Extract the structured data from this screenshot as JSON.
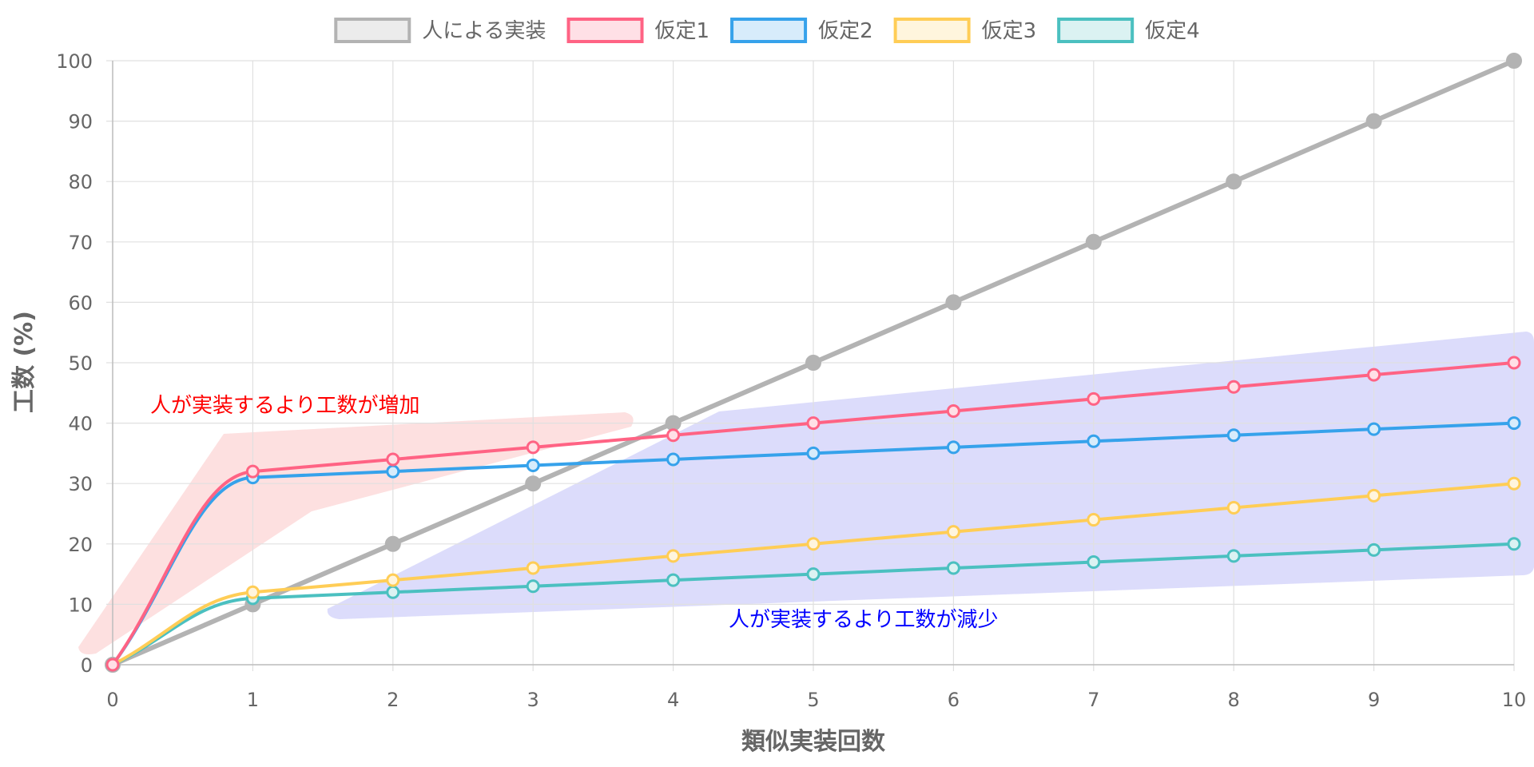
{
  "chart_data": {
    "type": "line",
    "xlabel": "類似実装回数",
    "ylabel": "工数 (%)",
    "xlim": [
      0,
      10
    ],
    "ylim": [
      0,
      100
    ],
    "x_ticks": [
      "0",
      "1",
      "2",
      "3",
      "4",
      "5",
      "6",
      "7",
      "8",
      "9",
      "10"
    ],
    "y_ticks": [
      "0",
      "10",
      "20",
      "30",
      "40",
      "50",
      "60",
      "70",
      "80",
      "90",
      "100"
    ],
    "grid": true,
    "legend_position": "top",
    "x": [
      0,
      1,
      2,
      3,
      4,
      5,
      6,
      7,
      8,
      9,
      10
    ],
    "series": [
      {
        "name": "人による実装",
        "color": "#b3b3b3",
        "fill": "#ececec",
        "values": [
          0,
          10,
          20,
          30,
          40,
          50,
          60,
          70,
          80,
          90,
          100
        ]
      },
      {
        "name": "仮定1",
        "color": "#ff6384",
        "fill": "#ffe0e6",
        "values": [
          0,
          32,
          34,
          36,
          38,
          40,
          42,
          44,
          46,
          48,
          50
        ]
      },
      {
        "name": "仮定2",
        "color": "#36a2eb",
        "fill": "#d7ecfb",
        "values": [
          0,
          31,
          32,
          33,
          34,
          35,
          36,
          37,
          38,
          39,
          40
        ]
      },
      {
        "name": "仮定3",
        "color": "#ffcd56",
        "fill": "#fff5dd",
        "values": [
          0,
          12,
          14,
          16,
          18,
          20,
          22,
          24,
          26,
          28,
          30
        ]
      },
      {
        "name": "仮定4",
        "color": "#4bc0c0",
        "fill": "#dbf2f2",
        "values": [
          0,
          11,
          12,
          13,
          14,
          15,
          16,
          17,
          18,
          19,
          20
        ]
      }
    ],
    "annotations": [
      {
        "text": "人が実装するより工数が増加",
        "color": "#ff0000",
        "region_fill": "#fde0e0"
      },
      {
        "text": "人が実装するより工数が減少",
        "color": "#0000ff",
        "region_fill": "#dcdcfb"
      }
    ]
  }
}
